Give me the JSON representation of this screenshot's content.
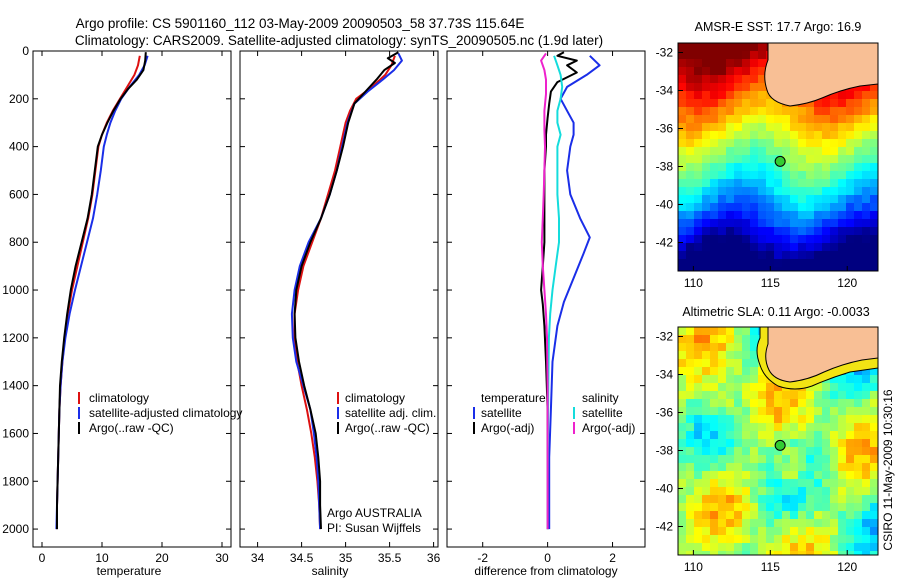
{
  "figure": {
    "title_line1": "Argo profile: CS 5901160_112 03-May-2009 20090503_58 37.73S 115.64E",
    "title_line2": "Climatology: CARS2009. Satellite-adjusted climatology: synTS_20090505.nc (1.9d later)",
    "footer_side": "CSIRO 11-May-2009 10:30:16",
    "credit_line1": "Argo AUSTRALIA",
    "credit_line2": "PI: Susan Wijffels"
  },
  "colors": {
    "red": "#dd1111",
    "blue": "#1a2ee8",
    "black": "#000000",
    "cyan": "#14dcdc",
    "magenta": "#ee22cc",
    "land": "#f8bf95"
  },
  "maps": [
    {
      "title": "AMSR-E SST: 17.7 Argo: 16.9",
      "x_ticks": [
        "110",
        "115",
        "120"
      ],
      "y_ticks": [
        "-32",
        "-34",
        "-36",
        "-38",
        "-40",
        "-42"
      ],
      "colormap": "jet",
      "float_location": {
        "lon": 115.64,
        "lat": -37.73
      }
    },
    {
      "title": "Altimetric SLA: 0.11 Argo: -0.0033",
      "x_ticks": [
        "110",
        "115",
        "120"
      ],
      "y_ticks": [
        "-32",
        "-34",
        "-36",
        "-38",
        "-40",
        "-42"
      ],
      "colormap": "jet",
      "float_location": {
        "lon": 115.64,
        "lat": -37.73
      }
    }
  ],
  "chart_data": [
    {
      "type": "line",
      "id": "temperature",
      "xlabel": "temperature",
      "ylabel": "",
      "xlim": [
        -1.5,
        31.5
      ],
      "ylim": [
        0,
        2075
      ],
      "y_reversed": true,
      "x_ticks": [
        0,
        10,
        20,
        30
      ],
      "y_ticks": [
        0,
        200,
        400,
        600,
        800,
        1000,
        1200,
        1400,
        1600,
        1800,
        2000
      ],
      "legend": [
        "climatology",
        "satellite-adjusted climatology",
        "Argo(..raw -QC)"
      ],
      "series": [
        {
          "name": "climatology",
          "color": "red",
          "points": [
            [
              16.3,
              20
            ],
            [
              16.0,
              60
            ],
            [
              15.4,
              100
            ],
            [
              14.2,
              150
            ],
            [
              13.0,
              200
            ],
            [
              11.8,
              250
            ],
            [
              10.8,
              300
            ],
            [
              10.0,
              350
            ],
            [
              9.4,
              400
            ],
            [
              8.9,
              500
            ],
            [
              8.4,
              600
            ],
            [
              7.7,
              700
            ],
            [
              6.8,
              800
            ],
            [
              5.9,
              900
            ],
            [
              5.0,
              1000
            ],
            [
              4.3,
              1100
            ],
            [
              3.8,
              1200
            ],
            [
              3.4,
              1300
            ],
            [
              3.1,
              1400
            ],
            [
              2.9,
              1500
            ],
            [
              2.8,
              1600
            ],
            [
              2.7,
              1700
            ],
            [
              2.6,
              1800
            ],
            [
              2.5,
              1900
            ],
            [
              2.5,
              2000
            ]
          ]
        },
        {
          "name": "satellite-adjusted climatology",
          "color": "blue",
          "points": [
            [
              17.6,
              20
            ],
            [
              17.1,
              60
            ],
            [
              16.2,
              100
            ],
            [
              14.6,
              150
            ],
            [
              13.2,
              200
            ],
            [
              12.2,
              250
            ],
            [
              11.4,
              300
            ],
            [
              10.8,
              350
            ],
            [
              10.3,
              400
            ],
            [
              9.8,
              500
            ],
            [
              9.2,
              600
            ],
            [
              8.5,
              700
            ],
            [
              7.5,
              800
            ],
            [
              6.5,
              900
            ],
            [
              5.5,
              1000
            ],
            [
              4.6,
              1100
            ],
            [
              3.9,
              1200
            ],
            [
              3.4,
              1300
            ],
            [
              3.1,
              1400
            ],
            [
              2.9,
              1500
            ],
            [
              2.8,
              1600
            ],
            [
              2.7,
              1700
            ],
            [
              2.6,
              1800
            ],
            [
              2.5,
              1900
            ],
            [
              2.4,
              2000
            ]
          ]
        },
        {
          "name": "Argo(..raw -QC)",
          "color": "black",
          "points": [
            [
              17.3,
              5
            ],
            [
              17.2,
              40
            ],
            [
              16.9,
              80
            ],
            [
              15.8,
              120
            ],
            [
              14.3,
              160
            ],
            [
              13.1,
              200
            ],
            [
              11.9,
              250
            ],
            [
              10.9,
              300
            ],
            [
              10.0,
              350
            ],
            [
              9.3,
              400
            ],
            [
              8.8,
              500
            ],
            [
              8.3,
              600
            ],
            [
              7.6,
              700
            ],
            [
              6.6,
              800
            ],
            [
              5.6,
              900
            ],
            [
              4.8,
              1000
            ],
            [
              4.2,
              1100
            ],
            [
              3.7,
              1200
            ],
            [
              3.3,
              1300
            ],
            [
              3.0,
              1400
            ],
            [
              2.9,
              1500
            ],
            [
              2.8,
              1600
            ],
            [
              2.7,
              1700
            ],
            [
              2.6,
              1800
            ],
            [
              2.5,
              1900
            ],
            [
              2.5,
              2000
            ]
          ]
        }
      ]
    },
    {
      "type": "line",
      "id": "salinity",
      "xlabel": "salinity",
      "ylabel": "",
      "xlim": [
        33.8,
        36.05
      ],
      "ylim": [
        0,
        2075
      ],
      "y_reversed": true,
      "x_ticks": [
        34,
        34.5,
        35,
        35.5,
        36
      ],
      "legend": [
        "climatology",
        "satellite adj. clim.",
        "Argo(..raw -QC)"
      ],
      "series": [
        {
          "name": "climatology",
          "color": "red",
          "points": [
            [
              35.56,
              20
            ],
            [
              35.52,
              60
            ],
            [
              35.45,
              100
            ],
            [
              35.3,
              150
            ],
            [
              35.12,
              200
            ],
            [
              35.05,
              250
            ],
            [
              35.0,
              300
            ],
            [
              34.94,
              400
            ],
            [
              34.88,
              500
            ],
            [
              34.8,
              600
            ],
            [
              34.72,
              700
            ],
            [
              34.62,
              800
            ],
            [
              34.52,
              900
            ],
            [
              34.46,
              1000
            ],
            [
              34.42,
              1100
            ],
            [
              34.42,
              1200
            ],
            [
              34.45,
              1300
            ],
            [
              34.5,
              1400
            ],
            [
              34.56,
              1500
            ],
            [
              34.61,
              1600
            ],
            [
              34.65,
              1700
            ],
            [
              34.68,
              1800
            ],
            [
              34.7,
              1900
            ],
            [
              34.71,
              2000
            ]
          ]
        },
        {
          "name": "satellite adj. clim.",
          "color": "blue",
          "points": [
            [
              35.6,
              10
            ],
            [
              35.64,
              40
            ],
            [
              35.55,
              80
            ],
            [
              35.42,
              120
            ],
            [
              35.25,
              170
            ],
            [
              35.1,
              220
            ],
            [
              35.02,
              300
            ],
            [
              34.96,
              400
            ],
            [
              34.9,
              500
            ],
            [
              34.82,
              600
            ],
            [
              34.72,
              700
            ],
            [
              34.58,
              800
            ],
            [
              34.48,
              900
            ],
            [
              34.42,
              1000
            ],
            [
              34.39,
              1100
            ],
            [
              34.4,
              1200
            ],
            [
              34.44,
              1300
            ],
            [
              34.52,
              1400
            ],
            [
              34.6,
              1500
            ],
            [
              34.64,
              1600
            ],
            [
              34.67,
              1700
            ],
            [
              34.69,
              1800
            ],
            [
              34.7,
              1900
            ],
            [
              34.71,
              2000
            ]
          ]
        },
        {
          "name": "Argo(..raw -QC)",
          "color": "black",
          "points": [
            [
              35.6,
              5
            ],
            [
              35.48,
              30
            ],
            [
              35.56,
              50
            ],
            [
              35.44,
              80
            ],
            [
              35.35,
              120
            ],
            [
              35.2,
              180
            ],
            [
              35.1,
              220
            ],
            [
              35.03,
              300
            ],
            [
              34.97,
              400
            ],
            [
              34.9,
              500
            ],
            [
              34.82,
              600
            ],
            [
              34.72,
              700
            ],
            [
              34.6,
              800
            ],
            [
              34.5,
              900
            ],
            [
              34.44,
              1000
            ],
            [
              34.42,
              1100
            ],
            [
              34.43,
              1200
            ],
            [
              34.47,
              1300
            ],
            [
              34.53,
              1400
            ],
            [
              34.6,
              1500
            ],
            [
              34.66,
              1600
            ],
            [
              34.69,
              1700
            ],
            [
              34.71,
              1800
            ],
            [
              34.71,
              1900
            ],
            [
              34.72,
              2000
            ]
          ]
        }
      ]
    },
    {
      "type": "line",
      "id": "difference",
      "xlabel": "difference from climatology",
      "ylabel": "",
      "xlim": [
        -3.1,
        3.0
      ],
      "ylim": [
        0,
        2075
      ],
      "y_reversed": true,
      "x_ticks": [
        -2,
        0,
        2
      ],
      "legend_headers": [
        "temperature",
        "salinity"
      ],
      "legend": [
        "satellite",
        "Argo(-adj)",
        "satellite",
        "Argo(-adj)"
      ],
      "series": [
        {
          "name": "temperature satellite",
          "color": "blue",
          "points": [
            [
              1.3,
              20
            ],
            [
              1.6,
              60
            ],
            [
              1.2,
              100
            ],
            [
              0.6,
              150
            ],
            [
              0.4,
              200
            ],
            [
              0.6,
              250
            ],
            [
              0.8,
              300
            ],
            [
              0.8,
              350
            ],
            [
              0.7,
              400
            ],
            [
              0.6,
              500
            ],
            [
              0.7,
              600
            ],
            [
              1.0,
              700
            ],
            [
              1.3,
              780
            ],
            [
              1.1,
              850
            ],
            [
              0.8,
              950
            ],
            [
              0.5,
              1050
            ],
            [
              0.3,
              1150
            ],
            [
              0.15,
              1300
            ],
            [
              0.1,
              1500
            ],
            [
              0.05,
              1700
            ],
            [
              0.05,
              1900
            ],
            [
              0.05,
              2000
            ]
          ]
        },
        {
          "name": "temperature Argo(-adj)",
          "color": "black",
          "points": [
            [
              0.5,
              5
            ],
            [
              0.3,
              20
            ],
            [
              0.9,
              40
            ],
            [
              0.6,
              60
            ],
            [
              0.9,
              90
            ],
            [
              0.3,
              130
            ],
            [
              0.1,
              170
            ],
            [
              0.05,
              220
            ],
            [
              0.0,
              280
            ],
            [
              -0.05,
              350
            ],
            [
              -0.05,
              400
            ],
            [
              -0.1,
              500
            ],
            [
              -0.1,
              600
            ],
            [
              -0.1,
              700
            ],
            [
              -0.1,
              800
            ],
            [
              -0.15,
              900
            ],
            [
              -0.2,
              1000
            ],
            [
              -0.15,
              1060
            ],
            [
              -0.1,
              1150
            ],
            [
              -0.05,
              1300
            ],
            [
              0.0,
              1500
            ],
            [
              0.0,
              1700
            ],
            [
              0.0,
              1900
            ],
            [
              0.0,
              2000
            ]
          ]
        },
        {
          "name": "salinity satellite",
          "color": "cyan",
          "points": [
            [
              0.2,
              20
            ],
            [
              0.3,
              60
            ],
            [
              0.4,
              100
            ],
            [
              0.45,
              150
            ],
            [
              0.4,
              200
            ],
            [
              0.3,
              250
            ],
            [
              0.3,
              300
            ],
            [
              0.4,
              350
            ],
            [
              0.3,
              400
            ],
            [
              0.3,
              500
            ],
            [
              0.3,
              600
            ],
            [
              0.35,
              700
            ],
            [
              0.35,
              800
            ],
            [
              0.25,
              900
            ],
            [
              0.15,
              1000
            ],
            [
              0.08,
              1100
            ],
            [
              0.04,
              1200
            ],
            [
              0.02,
              1400
            ],
            [
              0.01,
              1600
            ],
            [
              0.0,
              1800
            ],
            [
              0.0,
              2000
            ]
          ]
        },
        {
          "name": "salinity Argo(-adj)",
          "color": "magenta",
          "points": [
            [
              -0.05,
              10
            ],
            [
              -0.2,
              40
            ],
            [
              -0.1,
              80
            ],
            [
              -0.05,
              120
            ],
            [
              -0.05,
              180
            ],
            [
              -0.1,
              250
            ],
            [
              -0.1,
              330
            ],
            [
              -0.08,
              400
            ],
            [
              -0.1,
              500
            ],
            [
              -0.12,
              600
            ],
            [
              -0.15,
              700
            ],
            [
              -0.18,
              800
            ],
            [
              -0.15,
              900
            ],
            [
              -0.1,
              1000
            ],
            [
              -0.05,
              1100
            ],
            [
              -0.02,
              1200
            ],
            [
              0.0,
              1400
            ],
            [
              0.0,
              1600
            ],
            [
              0.0,
              1800
            ],
            [
              0.0,
              2000
            ]
          ]
        }
      ]
    }
  ]
}
